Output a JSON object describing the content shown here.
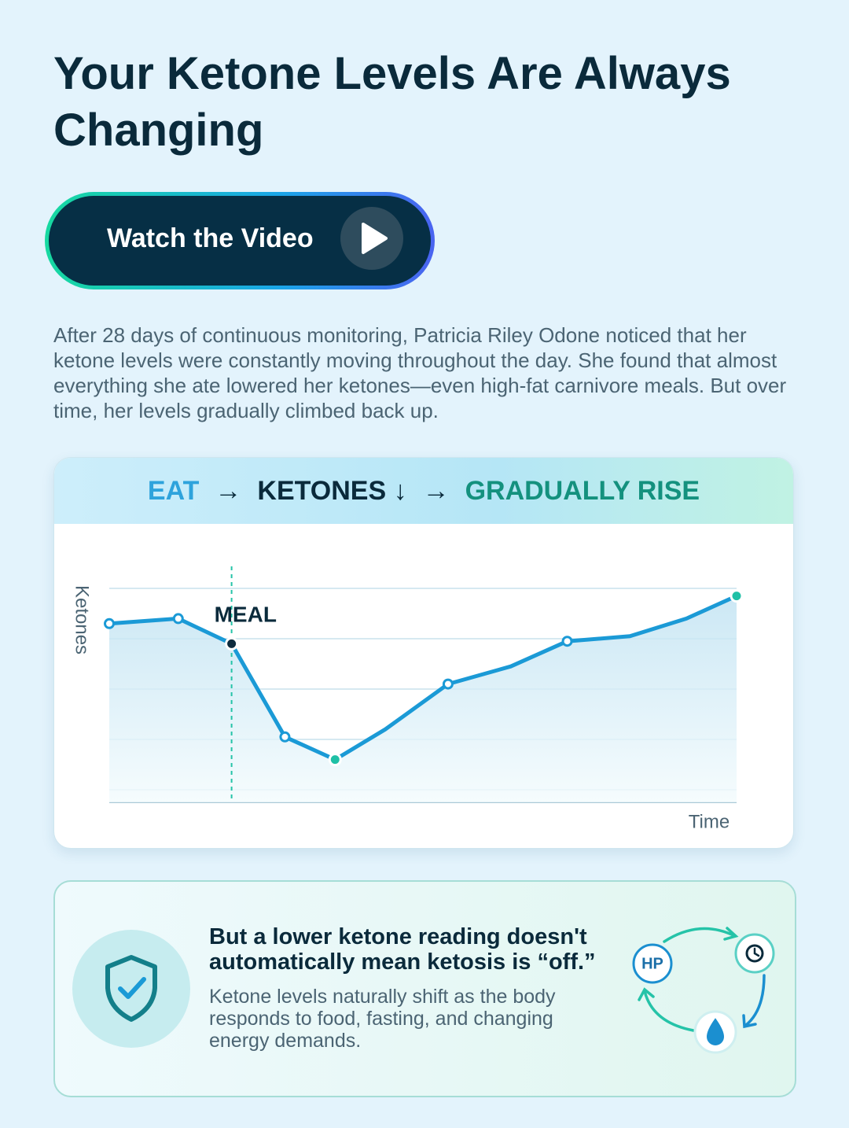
{
  "header": {
    "title": "Your Ketone Levels Are Always Changing"
  },
  "button": {
    "label": "Watch the Video"
  },
  "intro": "After 28 days of continuous monitoring, Patricia Riley Odone noticed that her ketone levels were constantly moving throughout the day. She found that almost everything she ate lowered her ketones—even high-fat carnivore meals. But over time, her levels gradually climbed back up.",
  "chart": {
    "type": "line",
    "flow": [
      "EAT",
      "→",
      "KETONES ↓",
      "→",
      "GRADUALLY RISE"
    ],
    "y_label": "Ketones",
    "x_label": "Time",
    "annotation": {
      "text": "MEAL",
      "x": 19.5
    },
    "x": [
      0,
      11,
      19.5,
      28,
      36,
      44,
      54,
      64,
      73,
      83,
      92,
      100
    ],
    "series": [
      {
        "color": "#1b9ad6",
        "values": [
          3.3,
          3.4,
          2.9,
          1.05,
          0.6,
          1.2,
          2.1,
          2.45,
          2.95,
          3.05,
          3.4,
          3.85
        ],
        "markers": [
          "#ffffff",
          "#ffffff",
          "#0d2b3e",
          "#ffffff",
          "#1fc0a6",
          null,
          "#ffffff",
          null,
          "#ffffff",
          null,
          null,
          "#1fc0a6"
        ]
      }
    ],
    "xlim": [
      0,
      100
    ],
    "ylim": [
      -0.25,
      4
    ],
    "yticks": [
      0,
      1,
      2,
      3,
      4
    ],
    "grid": true
  },
  "note": {
    "heading": "But a lower ketone reading doesn't automatically mean ketosis is “off.”",
    "body": "Ketone levels naturally shift as the body responds to food, fasting, and changing energy demands.",
    "hp_label": "HP"
  }
}
